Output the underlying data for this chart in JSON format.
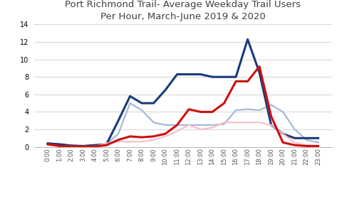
{
  "title": "Port Richmond Trail- Average Weekday Trail Users\nPer Hour, March-June 2019 & 2020",
  "hours": [
    "0:00",
    "1:00",
    "2:00",
    "3:00",
    "4:00",
    "5:00",
    "6:00",
    "7:00",
    "8:00",
    "9:00",
    "10:00",
    "11:00",
    "12:00",
    "13:00",
    "14:00",
    "15:00",
    "16:00",
    "17:00",
    "18:00",
    "19:00",
    "20:00",
    "21:00",
    "22:00",
    "23:00"
  ],
  "ped_2019": [
    0.4,
    0.3,
    0.15,
    0.1,
    0.2,
    0.3,
    1.5,
    5.0,
    4.2,
    2.8,
    2.5,
    2.5,
    2.5,
    2.5,
    2.5,
    2.6,
    4.2,
    4.3,
    4.2,
    4.8,
    4.0,
    2.0,
    0.8,
    0.5
  ],
  "ped_2020": [
    0.4,
    0.3,
    0.15,
    0.1,
    0.2,
    0.3,
    3.0,
    5.8,
    5.0,
    5.0,
    6.5,
    8.3,
    8.3,
    8.3,
    8.0,
    8.0,
    8.0,
    12.3,
    8.5,
    2.5,
    1.5,
    1.0,
    1.0,
    1.0
  ],
  "bike_2019": [
    0.2,
    0.1,
    0.05,
    0.05,
    0.05,
    0.4,
    0.6,
    0.6,
    0.6,
    0.8,
    1.2,
    1.8,
    2.5,
    2.0,
    2.2,
    2.8,
    2.8,
    2.8,
    2.8,
    2.5,
    1.5,
    0.5,
    0.2,
    0.1
  ],
  "bike_2020": [
    0.3,
    0.1,
    0.05,
    0.05,
    0.05,
    0.2,
    0.8,
    1.2,
    1.1,
    1.2,
    1.5,
    2.5,
    4.3,
    4.0,
    4.0,
    5.0,
    7.5,
    7.5,
    9.2,
    3.5,
    0.5,
    0.2,
    0.1,
    0.1
  ],
  "color_ped_2019": "#a8b8d8",
  "color_ped_2020": "#1a3a7a",
  "color_bike_2019": "#f5c0c8",
  "color_bike_2020": "#cc1010",
  "ylim": [
    0,
    14
  ],
  "yticks": [
    0,
    2,
    4,
    6,
    8,
    10,
    12,
    14
  ],
  "title_color": "#404040",
  "grid_color": "#d8d8d8",
  "background_color": "#ffffff"
}
